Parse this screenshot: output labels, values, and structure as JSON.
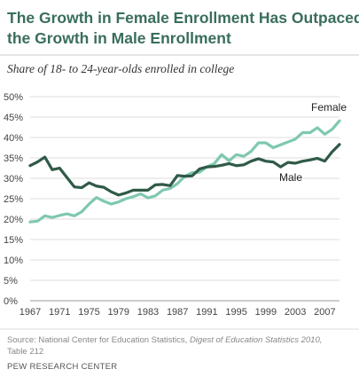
{
  "chart_data": {
    "type": "line",
    "title": [
      "The Growth in Female Enrollment Has Outpaced",
      "the Growth in Male Enrollment"
    ],
    "subtitle": "Share of 18- to 24-year-olds enrolled in college",
    "xlabel": "",
    "ylabel": "",
    "ylim": [
      0,
      50
    ],
    "y_ticks": [
      "0%",
      "5%",
      "10%",
      "15%",
      "20%",
      "25%",
      "30%",
      "35%",
      "40%",
      "45%",
      "50%"
    ],
    "x_ticks": [
      "1967",
      "1971",
      "1975",
      "1979",
      "1983",
      "1987",
      "1991",
      "1995",
      "1999",
      "2003",
      "2007"
    ],
    "xlim": [
      1967,
      2009
    ],
    "grid": true,
    "x": [
      1967,
      1968,
      1969,
      1970,
      1971,
      1972,
      1973,
      1974,
      1975,
      1976,
      1977,
      1978,
      1979,
      1980,
      1981,
      1982,
      1983,
      1984,
      1985,
      1986,
      1987,
      1988,
      1989,
      1990,
      1991,
      1992,
      1993,
      1994,
      1995,
      1996,
      1997,
      1998,
      1999,
      2000,
      2001,
      2002,
      2003,
      2004,
      2005,
      2006,
      2007,
      2008,
      2009
    ],
    "series": [
      {
        "name": "Female",
        "color": "#7fc8b0",
        "values": [
          19.3,
          19.5,
          20.8,
          20.4,
          20.9,
          21.3,
          20.8,
          21.8,
          23.7,
          25.3,
          24.4,
          23.7,
          24.2,
          25.0,
          25.5,
          26.2,
          25.2,
          25.7,
          27.1,
          27.5,
          28.7,
          30.5,
          31.4,
          31.5,
          32.8,
          33.6,
          35.8,
          34.3,
          35.8,
          35.4,
          36.6,
          38.7,
          38.7,
          37.5,
          38.2,
          38.9,
          39.6,
          41.2,
          41.2,
          42.4,
          40.8,
          42.0,
          44.1
        ]
      },
      {
        "name": "Male",
        "color": "#2f5a47",
        "values": [
          33.1,
          34.0,
          35.2,
          32.1,
          32.5,
          30.2,
          27.9,
          27.7,
          28.9,
          28.1,
          27.8,
          26.7,
          25.9,
          26.4,
          27.1,
          27.1,
          27.1,
          28.4,
          28.5,
          28.2,
          30.7,
          30.5,
          30.6,
          32.3,
          32.8,
          32.9,
          33.2,
          33.6,
          33.1,
          33.3,
          34.2,
          34.8,
          34.2,
          34.0,
          32.8,
          33.9,
          33.7,
          34.2,
          34.5,
          34.9,
          34.2,
          36.5,
          38.3
        ]
      }
    ]
  },
  "source": {
    "prefix": "Source: National Center for Education Statistics,",
    "italic": "Digest of Education Statistics 2010,",
    "line2": "Table 212"
  },
  "credit": "PEW RESEARCH CENTER"
}
